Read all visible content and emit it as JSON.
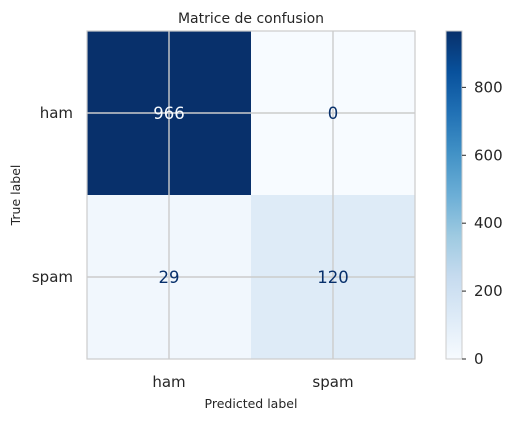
{
  "chart_data": {
    "type": "heatmap",
    "title": "Matrice de confusion",
    "xlabel": "Predicted label",
    "ylabel": "True label",
    "x_categories": [
      "ham",
      "spam"
    ],
    "y_categories": [
      "ham",
      "spam"
    ],
    "values": [
      [
        966,
        0
      ],
      [
        29,
        120
      ]
    ],
    "colormap": "Blues",
    "colorbar": {
      "range": [
        0,
        966
      ],
      "ticks": [
        0,
        200,
        400,
        600,
        800
      ]
    },
    "grid": true,
    "colors": {
      "low": "#f7fbff",
      "high": "#08306b",
      "text_on_dark": "#f7fbff",
      "text_on_light": "#08306b",
      "grid": "#cccccc"
    }
  }
}
